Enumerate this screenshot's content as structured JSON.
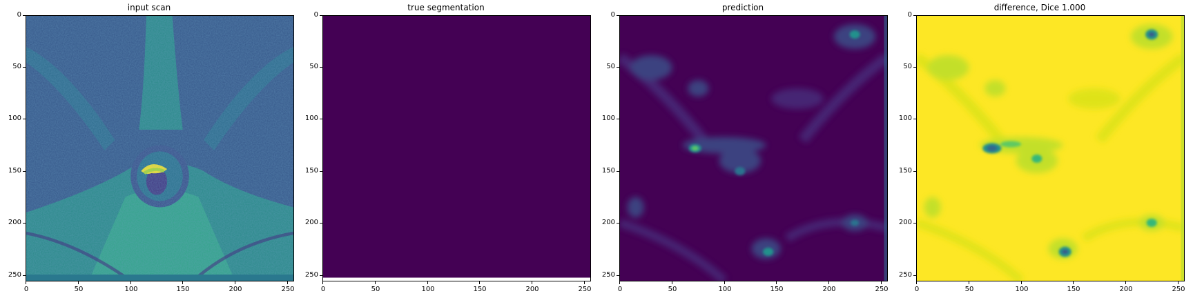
{
  "figure": {
    "panels": [
      {
        "title": "input scan"
      },
      {
        "title": "true segmentation"
      },
      {
        "title": "prediction"
      },
      {
        "title": "difference, Dice 1.000"
      }
    ],
    "x_ticks": [
      "0",
      "50",
      "100",
      "150",
      "200",
      "250"
    ],
    "y_ticks": [
      "0",
      "50",
      "100",
      "150",
      "200",
      "250"
    ],
    "colormap": {
      "low": "#440154",
      "mid": "#21918c",
      "high": "#fde725"
    }
  }
}
